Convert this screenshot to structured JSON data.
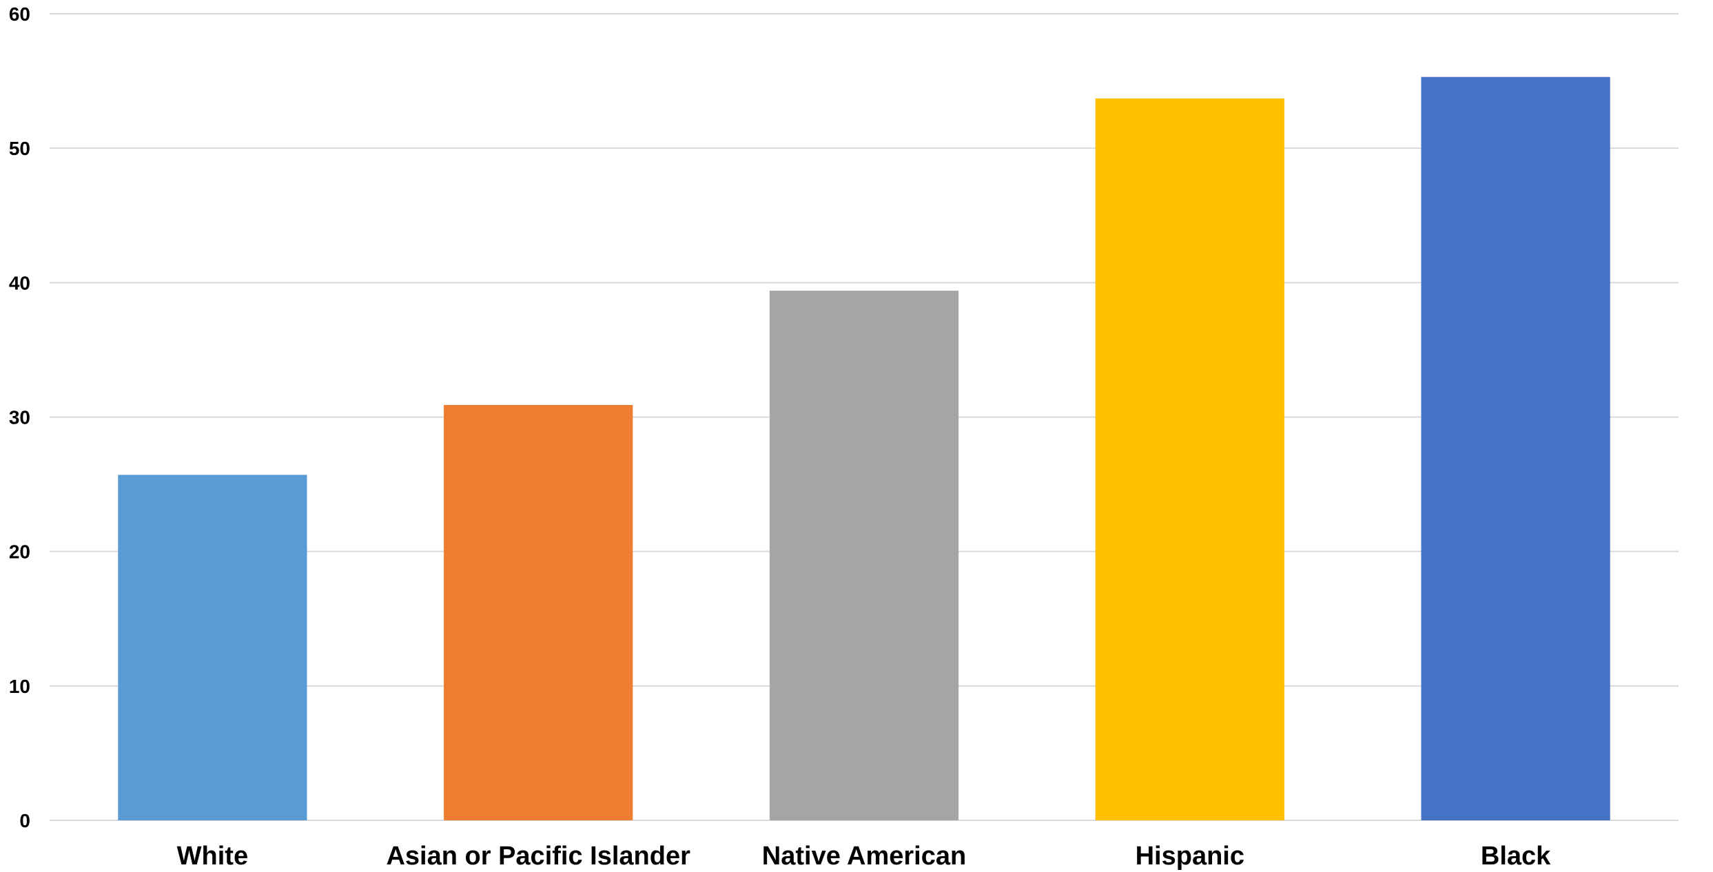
{
  "chart_data": {
    "type": "bar",
    "categories": [
      "White",
      "Asian or Pacific Islander",
      "Native American",
      "Hispanic",
      "Black"
    ],
    "values": [
      25.7,
      30.9,
      39.4,
      53.7,
      55.3
    ],
    "colors": [
      "#5b9bd5",
      "#ed7d31",
      "#a5a5a5",
      "#ffc000",
      "#4472c4"
    ],
    "title": "",
    "xlabel": "",
    "ylabel": "",
    "ylim": [
      0,
      60
    ],
    "yticks": [
      0,
      10,
      20,
      30,
      40,
      50,
      60
    ],
    "grid": true,
    "legend": "none"
  }
}
